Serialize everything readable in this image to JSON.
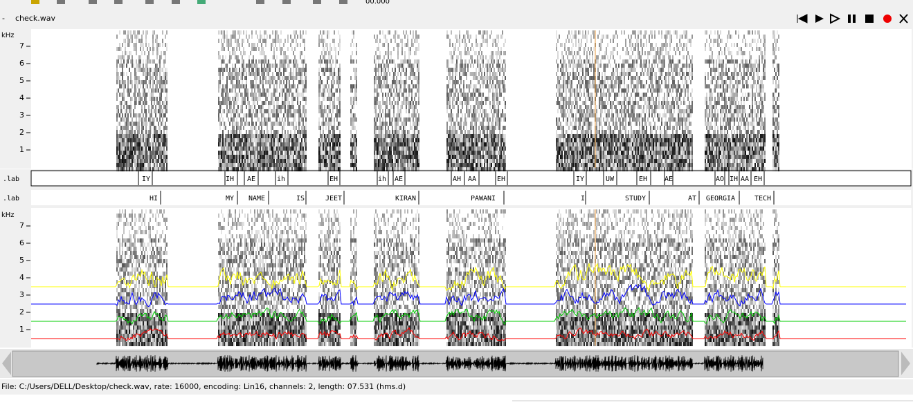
{
  "toolbar": {
    "time": "00.000"
  },
  "sound": {
    "title": "check.wav"
  },
  "pane_top": {
    "axis_label": "kHz",
    "ticks": [
      "7",
      "6",
      "5",
      "4",
      "3",
      "2",
      "1"
    ]
  },
  "phoneme_tier": {
    "name": ".lab",
    "labels": [
      "IY",
      "IH",
      "AE",
      "ih",
      "EH",
      "ih",
      "AE",
      "AH",
      "AA",
      "EH",
      "IY",
      "UW",
      "EH",
      "AE",
      "AO",
      "IH",
      "AA",
      "EH"
    ]
  },
  "word_tier": {
    "name": ".lab",
    "labels": [
      "HI",
      "MY",
      "NAME",
      "IS",
      "JEET",
      "KIRAN",
      "PAWANI",
      "I",
      "STUDY",
      "AT",
      "GEORGIA",
      "TECH"
    ]
  },
  "pane_bottom": {
    "axis_label": "kHz",
    "ticks": [
      "7",
      "6",
      "5",
      "4",
      "3",
      "2",
      "1"
    ]
  },
  "status": {
    "text": "File: C:/Users/DELL/Desktop/check.wav, rate: 16000, encoding: Lin16, channels: 2, length: 07.531 (hms.d)"
  }
}
